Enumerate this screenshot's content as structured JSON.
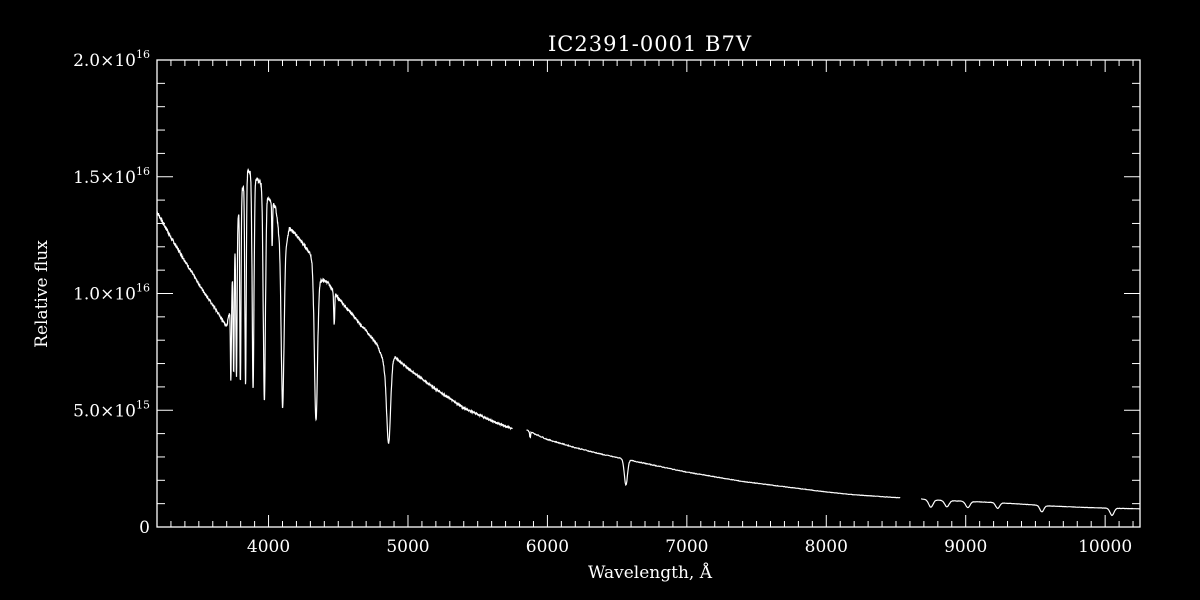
{
  "chart_data": {
    "type": "line",
    "title": "IC2391-0001   B7V",
    "xlabel": "Wavelength, Å",
    "ylabel": "Relative flux",
    "xlim": [
      3200,
      10250
    ],
    "ylim": [
      0,
      2e+16
    ],
    "grid": false,
    "x_ticks": [
      {
        "value": 4000,
        "label": "4000"
      },
      {
        "value": 5000,
        "label": "5000"
      },
      {
        "value": 6000,
        "label": "6000"
      },
      {
        "value": 7000,
        "label": "7000"
      },
      {
        "value": 8000,
        "label": "8000"
      },
      {
        "value": 9000,
        "label": "9000"
      },
      {
        "value": 10000,
        "label": "10000"
      }
    ],
    "y_ticks": [
      {
        "value": 0,
        "mantissa": "0",
        "exponent": ""
      },
      {
        "value": 5000000000000000.0,
        "mantissa": "5.0×10",
        "exponent": "15"
      },
      {
        "value": 1e+16,
        "mantissa": "1.0×10",
        "exponent": "16"
      },
      {
        "value": 1.5e+16,
        "mantissa": "1.5×10",
        "exponent": "16"
      },
      {
        "value": 2e+16,
        "mantissa": "2.0×10",
        "exponent": "16"
      }
    ],
    "x_minor_step": 100,
    "y_minor_step": 1000000000000000.0,
    "continuum": [
      [
        3200,
        1.35e+16
      ],
      [
        3300,
        1.24e+16
      ],
      [
        3400,
        1.14e+16
      ],
      [
        3500,
        1.04e+16
      ],
      [
        3600,
        9500000000000000.0
      ],
      [
        3700,
        8600000000000000.0
      ],
      [
        3720,
        9200000000000000.0
      ],
      [
        3760,
        1.22e+16
      ],
      [
        3800,
        1.42e+16
      ],
      [
        3850,
        1.53e+16
      ],
      [
        3900,
        1.5e+16
      ],
      [
        3950,
        1.47e+16
      ],
      [
        4000,
        1.41e+16
      ],
      [
        4050,
        1.37e+16
      ],
      [
        4100,
        1.14e+16
      ],
      [
        4150,
        1.28e+16
      ],
      [
        4200,
        1.25e+16
      ],
      [
        4300,
        1.17e+16
      ],
      [
        4370,
        1.06e+16
      ],
      [
        4420,
        1.05e+16
      ],
      [
        4500,
        9800000000000000.0
      ],
      [
        4600,
        9100000000000000.0
      ],
      [
        4700,
        8400000000000000.0
      ],
      [
        4780,
        7800000000000000.0
      ],
      [
        4830,
        7000000000000000.0
      ],
      [
        4900,
        7300000000000000.0
      ],
      [
        5000,
        6800000000000000.0
      ],
      [
        5200,
        5900000000000000.0
      ],
      [
        5400,
        5100000000000000.0
      ],
      [
        5600,
        4550000000000000.0
      ],
      [
        5750,
        4200000000000000.0
      ],
      null,
      [
        5850,
        4150000000000000.0
      ],
      [
        6000,
        3750000000000000.0
      ],
      [
        6200,
        3400000000000000.0
      ],
      [
        6400,
        3100000000000000.0
      ],
      [
        6600,
        2850000000000000.0
      ],
      [
        6800,
        2600000000000000.0
      ],
      [
        7000,
        2350000000000000.0
      ],
      [
        7200,
        2150000000000000.0
      ],
      [
        7400,
        1950000000000000.0
      ],
      [
        7600,
        1800000000000000.0
      ],
      [
        7800,
        1650000000000000.0
      ],
      [
        8000,
        1500000000000000.0
      ],
      [
        8200,
        1380000000000000.0
      ],
      [
        8400,
        1300000000000000.0
      ],
      [
        8530,
        1250000000000000.0
      ],
      null,
      [
        8680,
        1200000000000000.0
      ],
      [
        8800,
        1150000000000000.0
      ],
      [
        9000,
        1100000000000000.0
      ],
      [
        9200,
        1050000000000000.0
      ],
      [
        9400,
        980000000000000.0
      ],
      [
        9600,
        900000000000000.0
      ],
      [
        9800,
        850000000000000.0
      ],
      [
        10000,
        810000000000000.0
      ],
      [
        10250,
        780000000000000.0
      ]
    ],
    "absorption_lines": [
      {
        "x": 3730,
        "min": 6300000000000000.0,
        "width": 5
      },
      {
        "x": 3750,
        "min": 6600000000000000.0,
        "width": 5
      },
      {
        "x": 3770,
        "min": 6400000000000000.0,
        "width": 6
      },
      {
        "x": 3798,
        "min": 6200000000000000.0,
        "width": 6
      },
      {
        "x": 3835,
        "min": 6100000000000000.0,
        "width": 7
      },
      {
        "x": 3889,
        "min": 5900000000000000.0,
        "width": 9
      },
      {
        "x": 3970,
        "min": 5400000000000000.0,
        "width": 11
      },
      {
        "x": 4026,
        "min": 1.2e+16,
        "width": 4
      },
      {
        "x": 4101,
        "min": 5100000000000000.0,
        "width": 14
      },
      {
        "x": 4340,
        "min": 4600000000000000.0,
        "width": 16
      },
      {
        "x": 4471,
        "min": 8700000000000000.0,
        "width": 5
      },
      {
        "x": 4861,
        "min": 3600000000000000.0,
        "width": 20
      },
      {
        "x": 5876,
        "min": 3800000000000000.0,
        "width": 4
      },
      {
        "x": 6563,
        "min": 1800000000000000.0,
        "width": 16
      },
      {
        "x": 8750,
        "min": 850000000000000.0,
        "width": 22
      },
      {
        "x": 8865,
        "min": 870000000000000.0,
        "width": 22
      },
      {
        "x": 9015,
        "min": 830000000000000.0,
        "width": 22
      },
      {
        "x": 9229,
        "min": 800000000000000.0,
        "width": 20
      },
      {
        "x": 9546,
        "min": 650000000000000.0,
        "width": 20
      },
      {
        "x": 10049,
        "min": 500000000000000.0,
        "width": 20
      }
    ]
  }
}
